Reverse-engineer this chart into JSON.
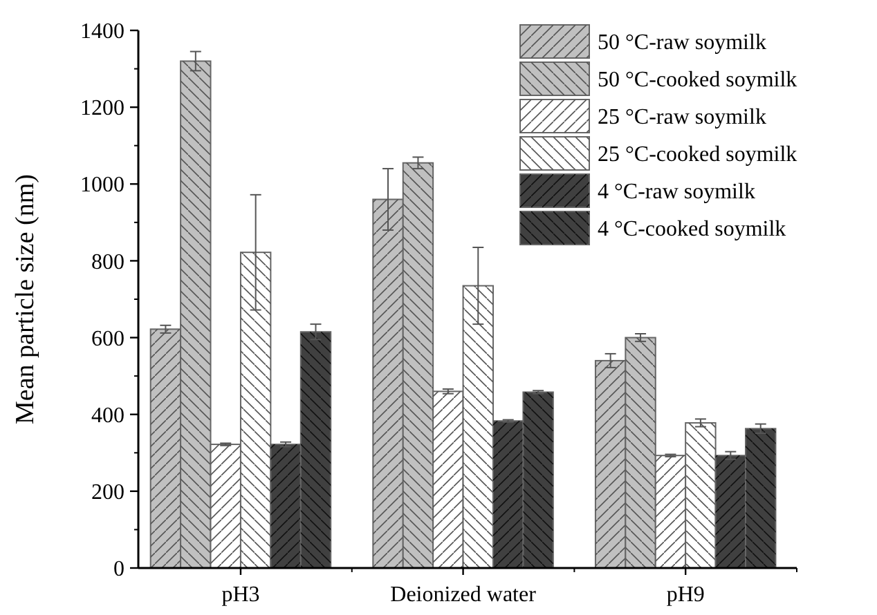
{
  "chart_data": {
    "type": "bar",
    "ylabel": "Mean particle size (nm)",
    "categories": [
      "pH3",
      "Deionized water",
      "pH9"
    ],
    "ylim": [
      0,
      1400
    ],
    "yticks": [
      0,
      200,
      400,
      600,
      800,
      1000,
      1200,
      1400
    ],
    "legend": "top right",
    "grid": false,
    "series": [
      {
        "name": "50 °C-raw soymilk",
        "color": "#c0c0c0",
        "values": [
          622,
          960,
          540
        ],
        "errors": [
          10,
          80,
          18
        ]
      },
      {
        "name": "50 °C-cooked soymilk",
        "color": "#c0c0c0",
        "values": [
          1320,
          1055,
          600
        ],
        "errors": [
          25,
          15,
          10
        ]
      },
      {
        "name": "25 °C-raw soymilk",
        "color": "#ffffff",
        "values": [
          322,
          460,
          293
        ],
        "errors": [
          3,
          6,
          3
        ]
      },
      {
        "name": "25 °C-cooked soymilk",
        "color": "#ffffff",
        "values": [
          822,
          735,
          378
        ],
        "errors": [
          150,
          100,
          10
        ]
      },
      {
        "name": "4 °C-raw soymilk",
        "color": "#404040",
        "values": [
          322,
          383,
          293
        ],
        "errors": [
          6,
          3,
          10
        ]
      },
      {
        "name": "4 °C-cooked soymilk",
        "color": "#404040",
        "values": [
          615,
          458,
          363
        ],
        "errors": [
          20,
          4,
          12
        ]
      }
    ]
  }
}
